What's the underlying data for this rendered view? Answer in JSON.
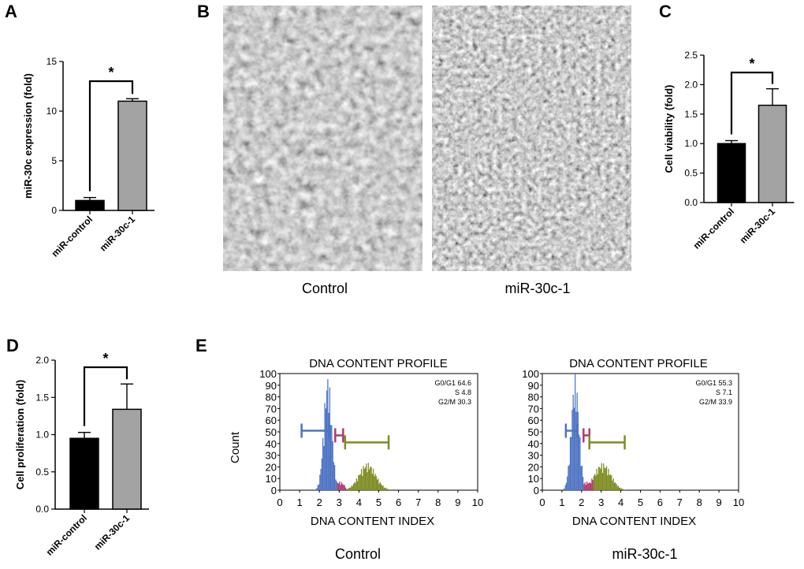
{
  "panels": {
    "a": {
      "letter": "A"
    },
    "b": {
      "letter": "B",
      "captions": [
        "Control",
        "miR-30c-1"
      ]
    },
    "c": {
      "letter": "C"
    },
    "d": {
      "letter": "D"
    },
    "e": {
      "letter": "E",
      "captions": [
        "Control",
        "miR-30c-1"
      ]
    }
  },
  "colors": {
    "control": "#000000",
    "treatment": "#a3a3a3",
    "g0g1": "#4d73c3",
    "s": "#b03a6e",
    "g2m": "#7f8c22",
    "bracket": "#000000"
  },
  "chart_data": [
    {
      "id": "A",
      "type": "bar",
      "ylabel": "miR-30c expression (fold)",
      "categories": [
        "miR-control",
        "miR-30c-1"
      ],
      "values": [
        1.0,
        11.0
      ],
      "errors": [
        0.3,
        0.25
      ],
      "ylim": [
        0,
        15
      ],
      "yticks": [
        "0",
        "5",
        "10",
        "15"
      ],
      "significance": "*"
    },
    {
      "id": "C",
      "type": "bar",
      "ylabel": "Cell viability (fold)",
      "categories": [
        "miR-control",
        "miR-30c-1"
      ],
      "values": [
        1.0,
        1.65
      ],
      "errors": [
        0.05,
        0.28
      ],
      "ylim": [
        0,
        2.5
      ],
      "yticks": [
        "0.0",
        "0.5",
        "1.0",
        "1.5",
        "2.0",
        "2.5"
      ],
      "significance": "*"
    },
    {
      "id": "D",
      "type": "bar",
      "ylabel": "Cell proliferation (fold)",
      "categories": [
        "miR-control",
        "miR-30c-1"
      ],
      "values": [
        0.95,
        1.34
      ],
      "errors": [
        0.08,
        0.34
      ],
      "ylim": [
        0,
        2.0
      ],
      "yticks": [
        "0.0",
        "0.5",
        "1.0",
        "1.5",
        "2.0"
      ],
      "significance": "*"
    },
    {
      "id": "E1",
      "type": "histogram",
      "title": "DNA CONTENT PROFILE",
      "xlabel": "DNA CONTENT INDEX",
      "ylabel": "Count",
      "xticks": [
        "0",
        "1",
        "2",
        "3",
        "4",
        "5",
        "6",
        "7",
        "8",
        "9",
        "10"
      ],
      "yticks": [
        "0",
        "10",
        "20",
        "30",
        "40",
        "50",
        "60",
        "70",
        "80",
        "90",
        "100"
      ],
      "stats": [
        "G0/G1 64.6",
        "S 4.8",
        "G2/M 30.3"
      ],
      "g0g1_peak": 2.4,
      "g2m_peak": 4.4,
      "gates": {
        "g0g1": [
          1.1,
          2.5,
          51
        ],
        "s": [
          2.8,
          3.2,
          47
        ],
        "g2m": [
          3.3,
          5.5,
          41
        ]
      }
    },
    {
      "id": "E2",
      "type": "histogram",
      "title": "DNA CONTENT PROFILE",
      "xlabel": "DNA CONTENT INDEX",
      "ylabel": "Count",
      "xticks": [
        "0",
        "1",
        "2",
        "3",
        "4",
        "5",
        "6",
        "7",
        "8",
        "9",
        "10"
      ],
      "yticks": [
        "0",
        "10",
        "20",
        "30",
        "40",
        "50",
        "60",
        "70",
        "80",
        "90",
        "100"
      ],
      "stats": [
        "G0/G1 55.3",
        "S 7.1",
        "G2/M 33.9"
      ],
      "g0g1_peak": 1.65,
      "g2m_peak": 3.05,
      "gates": {
        "g0g1": [
          1.2,
          1.8,
          51
        ],
        "s": [
          2.1,
          2.4,
          47
        ],
        "g2m": [
          2.4,
          4.2,
          41
        ]
      }
    }
  ]
}
